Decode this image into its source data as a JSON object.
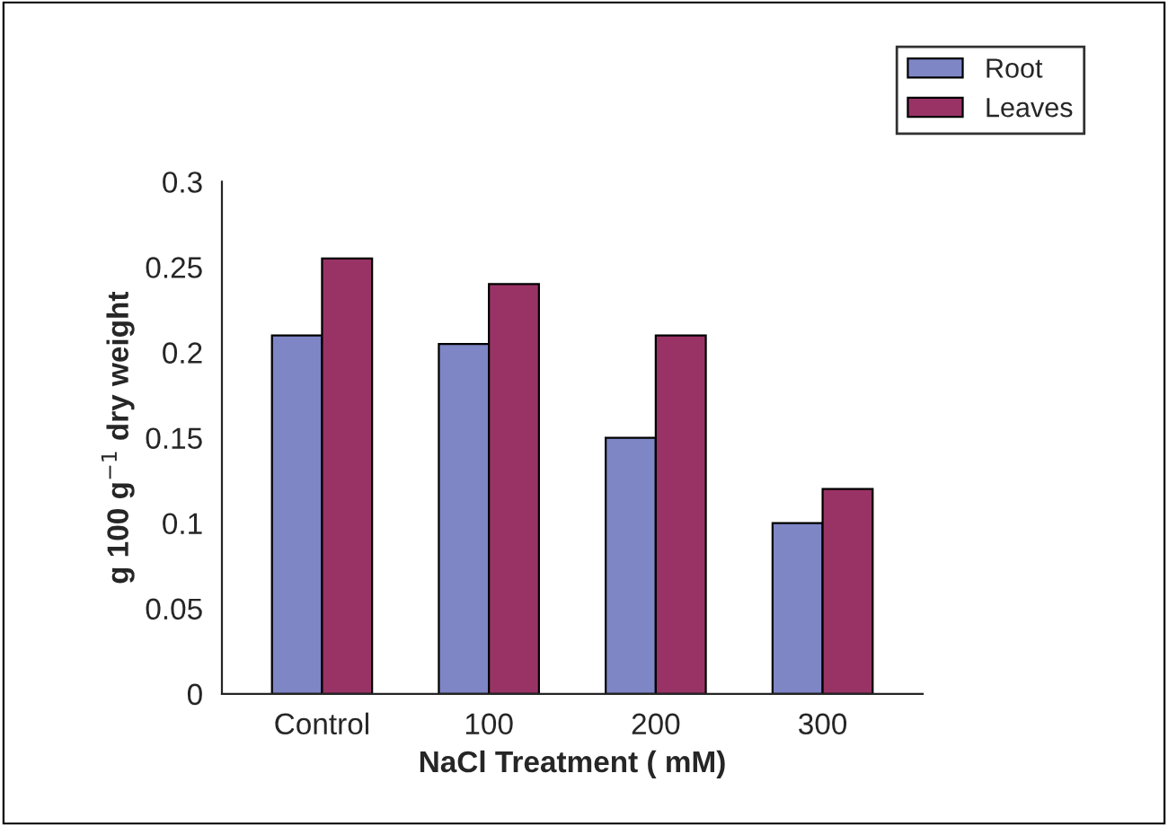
{
  "chart_data": {
    "type": "bar",
    "xlabel": "NaCl Treatment ( mM)",
    "ylabel": "g 100 g$^{−1}$ dry weight",
    "categories": [
      "Control",
      "100",
      "200",
      "300"
    ],
    "series": [
      {
        "name": "Root",
        "color": "#7f86c6",
        "values": [
          0.21,
          0.205,
          0.15,
          0.1
        ]
      },
      {
        "name": "Leaves",
        "color": "#993366",
        "values": [
          0.255,
          0.24,
          0.21,
          0.12
        ]
      }
    ],
    "ylim": [
      0,
      0.3
    ],
    "yticks": [
      0,
      0.05,
      0.1,
      0.15,
      0.2,
      0.25,
      0.3
    ],
    "grid": false,
    "legend": "top right"
  }
}
